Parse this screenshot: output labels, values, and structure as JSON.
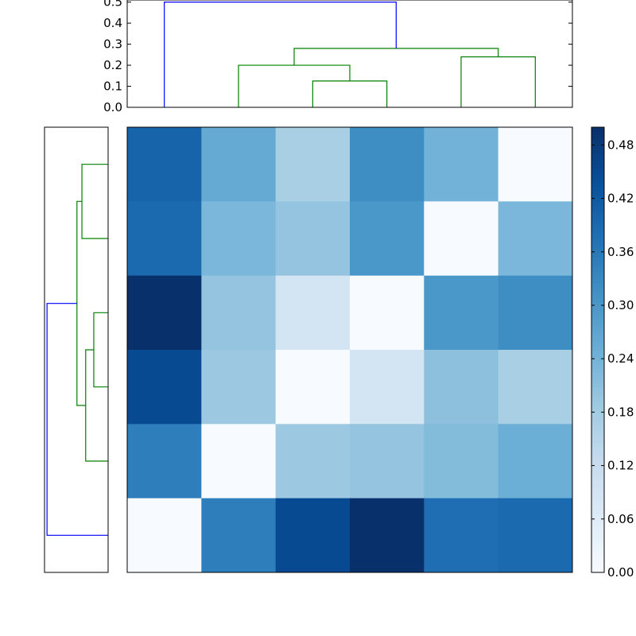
{
  "chart_data": [
    {
      "type": "dendrogram",
      "orientation": "top",
      "yticks": [
        "0.0",
        "0.1",
        "0.2",
        "0.3",
        "0.4",
        "0.5"
      ],
      "ylim": [
        0,
        0.51
      ],
      "leaf_positions": [
        0,
        1,
        2,
        3,
        4,
        5
      ],
      "links": [
        {
          "a": 2,
          "b": 3,
          "a_h": 0,
          "b_h": 0,
          "h": 0.125,
          "color": "#008000"
        },
        {
          "a": 1,
          "b": 2.5,
          "a_h": 0,
          "b_h": 0.125,
          "h": 0.2,
          "color": "#008000"
        },
        {
          "a": 4,
          "b": 5,
          "a_h": 0,
          "b_h": 0,
          "h": 0.24,
          "color": "#008000"
        },
        {
          "a": 1.75,
          "b": 4.5,
          "a_h": 0.2,
          "b_h": 0.24,
          "h": 0.28,
          "color": "#008000"
        },
        {
          "a": 0,
          "b": 3.125,
          "a_h": 0,
          "b_h": 0.28,
          "h": 0.5,
          "color": "#0000ff"
        }
      ]
    },
    {
      "type": "dendrogram",
      "orientation": "left",
      "leaf_positions": [
        0,
        1,
        2,
        3,
        4,
        5
      ],
      "xlim": [
        0,
        0.51
      ],
      "links": [
        {
          "a": 0,
          "b": 1,
          "a_h": 0,
          "b_h": 0,
          "h": 0.21,
          "color": "#008000"
        },
        {
          "a": 2,
          "b": 3,
          "a_h": 0,
          "b_h": 0,
          "h": 0.115,
          "color": "#008000"
        },
        {
          "a": 2.5,
          "b": 4,
          "a_h": 0.115,
          "b_h": 0,
          "h": 0.18,
          "color": "#008000"
        },
        {
          "a": 0.5,
          "b": 3.25,
          "a_h": 0.21,
          "b_h": 0.18,
          "h": 0.25,
          "color": "#008000"
        },
        {
          "a": 1.875,
          "b": 5,
          "a_h": 0.25,
          "b_h": 0,
          "h": 0.49,
          "color": "#0000ff"
        }
      ]
    },
    {
      "type": "heatmap",
      "rows": 6,
      "cols": 6,
      "values": [
        [
          0.4,
          0.26,
          0.17,
          0.32,
          0.24,
          0.0
        ],
        [
          0.39,
          0.23,
          0.2,
          0.3,
          0.0,
          0.23
        ],
        [
          0.5,
          0.2,
          0.09,
          0.0,
          0.3,
          0.32
        ],
        [
          0.45,
          0.19,
          0.0,
          0.09,
          0.21,
          0.17
        ],
        [
          0.35,
          0.0,
          0.19,
          0.2,
          0.22,
          0.25
        ],
        [
          0.0,
          0.35,
          0.45,
          0.5,
          0.38,
          0.39
        ]
      ],
      "vmin": 0,
      "vmax": 0.5,
      "colormap": "Blues",
      "colorbar_ticks": [
        "0.00",
        "0.06",
        "0.12",
        "0.18",
        "0.24",
        "0.30",
        "0.36",
        "0.42",
        "0.48"
      ]
    }
  ]
}
